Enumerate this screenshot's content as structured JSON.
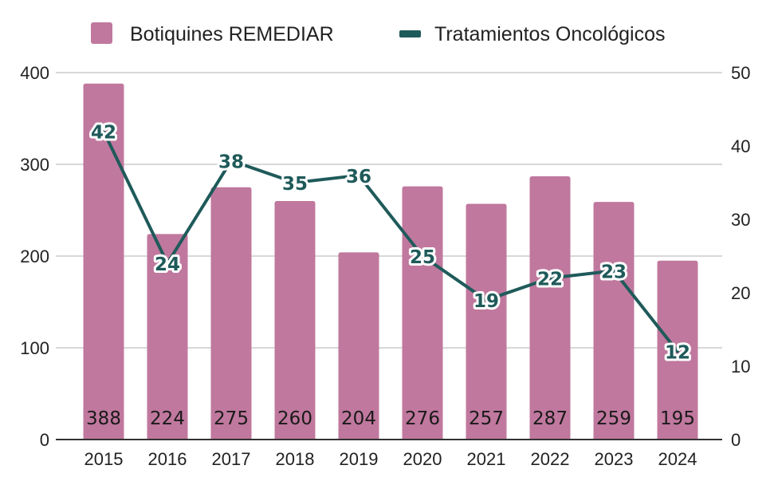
{
  "colors": {
    "bars": "#c0789e",
    "line": "#1f5a5a",
    "grid": "#cccccc",
    "axis": "#333333"
  },
  "chart_data": {
    "type": "bar+line",
    "title": "",
    "xlabel": "",
    "ylabel": "",
    "categories": [
      "2015",
      "2016",
      "2017",
      "2018",
      "2019",
      "2020",
      "2021",
      "2022",
      "2023",
      "2024"
    ],
    "series": [
      {
        "name": "Botiquines REMEDIAR",
        "type": "bar",
        "axis": "left",
        "values": [
          388,
          224,
          275,
          260,
          204,
          276,
          257,
          287,
          259,
          195
        ]
      },
      {
        "name": "Tratamientos Oncológicos",
        "type": "line",
        "axis": "right",
        "values": [
          42,
          24,
          38,
          35,
          36,
          25,
          19,
          22,
          23,
          12
        ]
      }
    ],
    "ylim_left": [
      0,
      400
    ],
    "ylim_right": [
      0,
      50
    ],
    "yticks_left": [
      "0",
      "100",
      "200",
      "300",
      "400"
    ],
    "yticks_right": [
      "0",
      "10",
      "20",
      "30",
      "40",
      "50"
    ],
    "grid": true,
    "legend_position": "top"
  }
}
